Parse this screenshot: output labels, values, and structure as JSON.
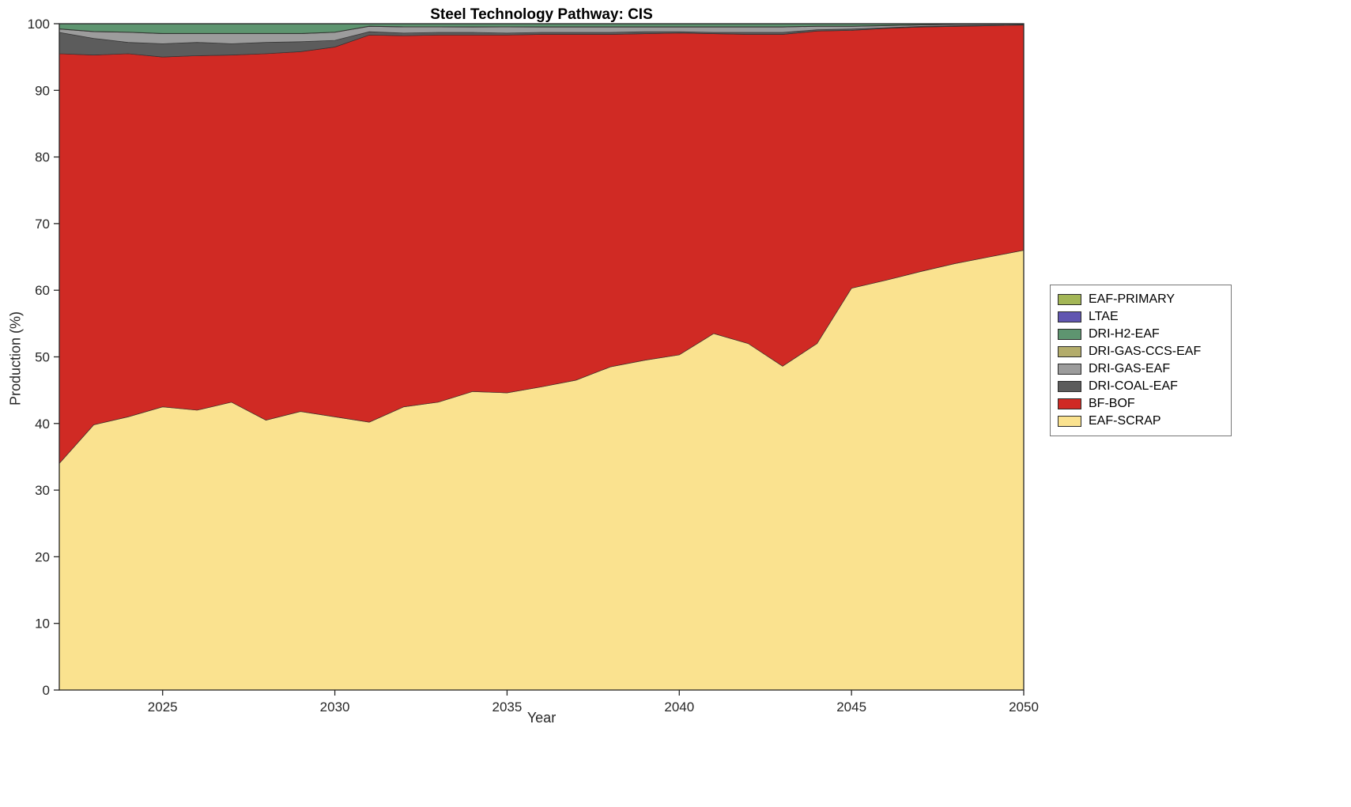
{
  "title": "Steel Technology Pathway: CIS",
  "xlabel": "Year",
  "ylabel": "Production (%)",
  "chart_data": {
    "type": "area",
    "stacked": true,
    "title": "Steel Technology Pathway: CIS",
    "xlabel": "Year",
    "ylabel": "Production (%)",
    "xlim": [
      2022,
      2050
    ],
    "ylim": [
      0,
      100
    ],
    "xticks": [
      2025,
      2030,
      2035,
      2040,
      2045,
      2050
    ],
    "yticks": [
      0,
      10,
      20,
      30,
      40,
      50,
      60,
      70,
      80,
      90,
      100
    ],
    "grid": false,
    "legend_position": "right-outside",
    "x": [
      2022,
      2023,
      2024,
      2025,
      2026,
      2027,
      2028,
      2029,
      2030,
      2031,
      2032,
      2033,
      2034,
      2035,
      2036,
      2037,
      2038,
      2039,
      2040,
      2041,
      2042,
      2043,
      2044,
      2045,
      2046,
      2047,
      2048,
      2049,
      2050
    ],
    "series": [
      {
        "name": "EAF-SCRAP",
        "color": "#FAE28F",
        "values": [
          34.0,
          39.8,
          41.0,
          42.5,
          42.0,
          43.2,
          40.5,
          41.8,
          41.0,
          40.2,
          42.5,
          43.2,
          44.8,
          44.6,
          45.5,
          46.5,
          48.5,
          49.5,
          50.3,
          53.5,
          52.0,
          48.6,
          52.0,
          60.3,
          61.5,
          62.8,
          64.0,
          65.0,
          66.0
        ]
      },
      {
        "name": "BF-BOF",
        "color": "#D02A24",
        "values": [
          61.5,
          55.5,
          54.5,
          52.5,
          53.2,
          52.1,
          55.0,
          54.0,
          55.5,
          58.1,
          55.7,
          55.1,
          53.5,
          53.7,
          52.9,
          51.9,
          49.9,
          49.0,
          48.3,
          45.0,
          46.4,
          49.8,
          46.9,
          38.7,
          37.8,
          36.7,
          35.6,
          34.7,
          33.8
        ]
      },
      {
        "name": "DRI-COAL-EAF",
        "color": "#5C5C5C",
        "values": [
          3.2,
          2.5,
          1.7,
          2.0,
          2.0,
          1.7,
          1.7,
          1.5,
          1.0,
          0.5,
          0.4,
          0.4,
          0.4,
          0.3,
          0.3,
          0.3,
          0.3,
          0.3,
          0.2,
          0.2,
          0.3,
          0.3,
          0.2,
          0.2,
          0.1,
          0.1,
          0.1,
          0.05,
          0.05
        ]
      },
      {
        "name": "DRI-GAS-EAF",
        "color": "#9C9C9C",
        "values": [
          0.5,
          1.0,
          1.5,
          1.5,
          1.3,
          1.5,
          1.3,
          1.2,
          1.2,
          0.8,
          0.9,
          0.8,
          0.8,
          0.9,
          0.8,
          0.8,
          0.8,
          0.7,
          0.7,
          0.8,
          0.8,
          0.8,
          0.5,
          0.4,
          0.3,
          0.2,
          0.2,
          0.15,
          0.1
        ]
      },
      {
        "name": "DRI-GAS-CCS-EAF",
        "color": "#B3AC6B",
        "values": [
          0.05,
          0.05,
          0.05,
          0.05,
          0.05,
          0.05,
          0.05,
          0.05,
          0.05,
          0.05,
          0.05,
          0.05,
          0.05,
          0.05,
          0.05,
          0.05,
          0.05,
          0.05,
          0.05,
          0.05,
          0.05,
          0.05,
          0.05,
          0.05,
          0.05,
          0.05,
          0.05,
          0.05,
          0.05
        ]
      },
      {
        "name": "DRI-H2-EAF",
        "color": "#5E9570",
        "values": [
          0.75,
          1.15,
          1.25,
          1.45,
          1.45,
          1.45,
          1.45,
          1.45,
          1.25,
          0.35,
          0.45,
          0.45,
          0.45,
          0.45,
          0.45,
          0.45,
          0.45,
          0.45,
          0.45,
          0.45,
          0.45,
          0.45,
          0.35,
          0.35,
          0.25,
          0.15,
          0.05,
          0.05,
          0.05
        ]
      },
      {
        "name": "LTAE",
        "color": "#6156B1",
        "values": [
          0,
          0,
          0,
          0,
          0,
          0,
          0,
          0,
          0,
          0,
          0,
          0,
          0,
          0,
          0,
          0,
          0,
          0,
          0,
          0,
          0,
          0,
          0,
          0,
          0,
          0,
          0,
          0,
          0
        ]
      },
      {
        "name": "EAF-PRIMARY",
        "color": "#A3B656",
        "values": [
          0,
          0,
          0,
          0,
          0,
          0,
          0,
          0,
          0,
          0,
          0,
          0,
          0,
          0,
          0,
          0,
          0,
          0,
          0,
          0,
          0,
          0,
          0,
          0,
          0,
          0,
          0,
          0,
          0
        ]
      }
    ],
    "legend": [
      {
        "label": "EAF-PRIMARY",
        "color": "#A3B656"
      },
      {
        "label": "LTAE",
        "color": "#6156B1"
      },
      {
        "label": "DRI-H2-EAF",
        "color": "#5E9570"
      },
      {
        "label": "DRI-GAS-CCS-EAF",
        "color": "#B3AC6B"
      },
      {
        "label": "DRI-GAS-EAF",
        "color": "#9C9C9C"
      },
      {
        "label": "DRI-COAL-EAF",
        "color": "#5C5C5C"
      },
      {
        "label": "BF-BOF",
        "color": "#D02A24"
      },
      {
        "label": "EAF-SCRAP",
        "color": "#FAE28F"
      }
    ]
  }
}
